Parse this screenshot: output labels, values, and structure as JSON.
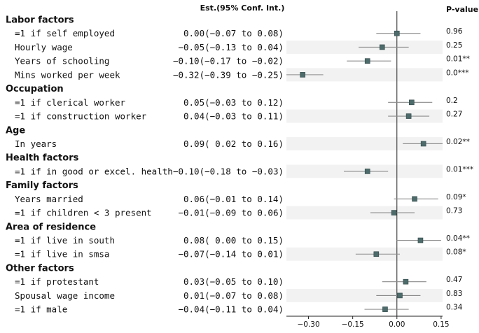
{
  "chart_data": {
    "type": "forest",
    "header_estimate": "Est.(95% Conf. Int.)",
    "header_pvalue": "P-value",
    "xlim": [
      -0.375,
      0.155
    ],
    "xticks": [
      -0.3,
      -0.15,
      0.0,
      0.15
    ],
    "xtick_labels": [
      "−0.30",
      "−0.15",
      "0.00",
      "0.15"
    ],
    "reference_line": 0,
    "rows": [
      {
        "kind": "group",
        "label": "Labor factors"
      },
      {
        "kind": "item",
        "label": "=1 if self employed",
        "est_text": "0.00(−0.07 to  0.08)",
        "est": 0.0,
        "lo": -0.07,
        "hi": 0.08,
        "p": "0.96",
        "shade": false
      },
      {
        "kind": "item",
        "label": "Hourly wage",
        "est_text": "−0.05(−0.13 to  0.04)",
        "est": -0.05,
        "lo": -0.13,
        "hi": 0.04,
        "p": "0.25",
        "shade": true
      },
      {
        "kind": "item",
        "label": "Years of schooling",
        "est_text": "−0.10(−0.17 to −0.02)",
        "est": -0.1,
        "lo": -0.17,
        "hi": -0.02,
        "p": "0.01**",
        "shade": false
      },
      {
        "kind": "item",
        "label": "Mins worked per week",
        "est_text": "−0.32(−0.39 to −0.25)",
        "est": -0.32,
        "lo": -0.39,
        "hi": -0.25,
        "p": "0.0***",
        "shade": true
      },
      {
        "kind": "group",
        "label": "Occupation"
      },
      {
        "kind": "item",
        "label": "=1 if clerical worker",
        "est_text": "0.05(−0.03 to  0.12)",
        "est": 0.05,
        "lo": -0.03,
        "hi": 0.12,
        "p": "0.2",
        "shade": false
      },
      {
        "kind": "item",
        "label": "=1 if construction worker",
        "est_text": "0.04(−0.03 to  0.11)",
        "est": 0.04,
        "lo": -0.03,
        "hi": 0.11,
        "p": "0.27",
        "shade": true
      },
      {
        "kind": "group",
        "label": "Age"
      },
      {
        "kind": "item",
        "label": "In years",
        "est_text": "0.09( 0.02 to  0.16)",
        "est": 0.09,
        "lo": 0.02,
        "hi": 0.16,
        "p": "0.02**",
        "shade": true
      },
      {
        "kind": "group",
        "label": "Health factors"
      },
      {
        "kind": "item",
        "label": "=1 if in good or excel. health",
        "est_text": "−0.10(−0.18 to −0.03)",
        "est": -0.1,
        "lo": -0.18,
        "hi": -0.03,
        "p": "0.01***",
        "shade": true
      },
      {
        "kind": "group",
        "label": "Family factors"
      },
      {
        "kind": "item",
        "label": "Years married",
        "est_text": "0.06(−0.01 to  0.14)",
        "est": 0.06,
        "lo": -0.01,
        "hi": 0.14,
        "p": "0.09*",
        "shade": false
      },
      {
        "kind": "item",
        "label": "=1 if children < 3 present",
        "est_text": "−0.01(−0.09 to  0.06)",
        "est": -0.01,
        "lo": -0.09,
        "hi": 0.06,
        "p": "0.73",
        "shade": true
      },
      {
        "kind": "group",
        "label": "Area of residence"
      },
      {
        "kind": "item",
        "label": "=1 if live in south",
        "est_text": "0.08( 0.00 to  0.15)",
        "est": 0.08,
        "lo": 0.0,
        "hi": 0.15,
        "p": "0.04**",
        "shade": false
      },
      {
        "kind": "item",
        "label": "=1 if live in smsa",
        "est_text": "−0.07(−0.14 to  0.01)",
        "est": -0.07,
        "lo": -0.14,
        "hi": 0.01,
        "p": "0.08*",
        "shade": true
      },
      {
        "kind": "group",
        "label": "Other factors"
      },
      {
        "kind": "item",
        "label": "=1 if protestant",
        "est_text": "0.03(−0.05 to  0.10)",
        "est": 0.03,
        "lo": -0.05,
        "hi": 0.1,
        "p": "0.47",
        "shade": false
      },
      {
        "kind": "item",
        "label": "Spousal wage income",
        "est_text": "0.01(−0.07 to  0.08)",
        "est": 0.01,
        "lo": -0.07,
        "hi": 0.08,
        "p": "0.83",
        "shade": true
      },
      {
        "kind": "item",
        "label": "=1 if male",
        "est_text": "−0.04(−0.11 to  0.04)",
        "est": -0.04,
        "lo": -0.11,
        "hi": 0.04,
        "p": "0.34",
        "shade": false
      }
    ],
    "colors": {
      "marker": "#4d6b6b",
      "marker_stroke": "#2f4545",
      "ci_line": "#8c8c8c",
      "shade": "#f2f2f2",
      "axis": "#222222"
    }
  }
}
